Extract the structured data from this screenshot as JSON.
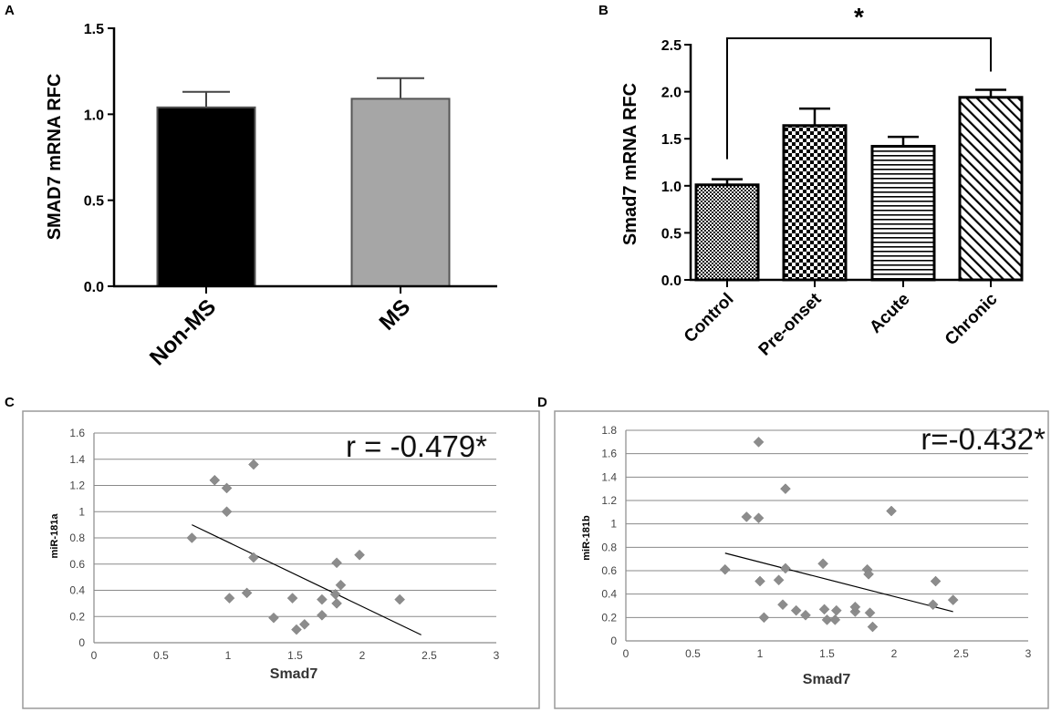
{
  "chart_data": [
    {
      "panel": "A",
      "type": "bar",
      "categories": [
        "Non-MS",
        "MS"
      ],
      "values": [
        1.04,
        1.09
      ],
      "errors": [
        0.09,
        0.12
      ],
      "colors": [
        "#000000",
        "#a6a6a6"
      ],
      "ylabel": "SMAD7 mRNA RFC",
      "ylim": [
        0,
        1.5
      ],
      "yticks": [
        "0.0",
        "0.5",
        "1.0",
        "1.5"
      ]
    },
    {
      "panel": "B",
      "type": "bar",
      "categories": [
        "Control",
        "Pre-onset",
        "Acute",
        "Chronic"
      ],
      "values": [
        1.01,
        1.64,
        1.42,
        1.94
      ],
      "errors": [
        0.06,
        0.18,
        0.1,
        0.08
      ],
      "patterns": [
        "fine-check",
        "checker",
        "horizontal-lines",
        "diagonal-lines"
      ],
      "ylabel": "Smad7 mRNA RFC",
      "ylim": [
        0,
        2.5
      ],
      "yticks": [
        "0.0",
        "0.5",
        "1.0",
        "1.5",
        "2.0",
        "2.5"
      ],
      "significance": {
        "from": "Control",
        "to": "Chronic",
        "label": "*"
      }
    },
    {
      "panel": "C",
      "type": "scatter",
      "xlabel": "Smad7",
      "ylabel": "miR-181a",
      "xlim": [
        0,
        3
      ],
      "ylim": [
        0,
        1.6
      ],
      "xticks": [
        "0",
        "0.5",
        "1",
        "1.5",
        "2",
        "2.5",
        "3"
      ],
      "yticks": [
        "0",
        "0.2",
        "0.4",
        "0.6",
        "0.8",
        "1",
        "1.2",
        "1.4",
        "1.6"
      ],
      "annotation": "r = -0.479*",
      "points": [
        {
          "x": 0.73,
          "y": 0.8
        },
        {
          "x": 0.9,
          "y": 1.24
        },
        {
          "x": 0.99,
          "y": 1.18
        },
        {
          "x": 0.99,
          "y": 1.0
        },
        {
          "x": 1.01,
          "y": 0.34
        },
        {
          "x": 1.14,
          "y": 0.38
        },
        {
          "x": 1.19,
          "y": 1.36
        },
        {
          "x": 1.19,
          "y": 0.65
        },
        {
          "x": 1.34,
          "y": 0.19
        },
        {
          "x": 1.48,
          "y": 0.34
        },
        {
          "x": 1.51,
          "y": 0.1
        },
        {
          "x": 1.57,
          "y": 0.14
        },
        {
          "x": 1.7,
          "y": 0.33
        },
        {
          "x": 1.7,
          "y": 0.21
        },
        {
          "x": 1.8,
          "y": 0.37
        },
        {
          "x": 1.81,
          "y": 0.3
        },
        {
          "x": 1.81,
          "y": 0.61
        },
        {
          "x": 1.84,
          "y": 0.44
        },
        {
          "x": 1.98,
          "y": 0.67
        },
        {
          "x": 2.28,
          "y": 0.33
        }
      ],
      "trendline": [
        {
          "x": 0.73,
          "y": 0.9
        },
        {
          "x": 2.44,
          "y": 0.06
        }
      ]
    },
    {
      "panel": "D",
      "type": "scatter",
      "xlabel": "Smad7",
      "ylabel": "miR-181b",
      "xlim": [
        0,
        3
      ],
      "ylim": [
        0,
        1.8
      ],
      "xticks": [
        "0",
        "0.5",
        "1",
        "1.5",
        "2",
        "2.5",
        "3"
      ],
      "yticks": [
        "0",
        "0.2",
        "0.4",
        "0.6",
        "0.8",
        "1",
        "1.2",
        "1.4",
        "1.6",
        "1.8"
      ],
      "annotation": "r=-0.432*",
      "points": [
        {
          "x": 0.74,
          "y": 0.61
        },
        {
          "x": 0.9,
          "y": 1.06
        },
        {
          "x": 0.99,
          "y": 1.7
        },
        {
          "x": 0.99,
          "y": 1.05
        },
        {
          "x": 1.0,
          "y": 0.51
        },
        {
          "x": 1.03,
          "y": 0.2
        },
        {
          "x": 1.14,
          "y": 0.52
        },
        {
          "x": 1.17,
          "y": 0.31
        },
        {
          "x": 1.19,
          "y": 1.3
        },
        {
          "x": 1.19,
          "y": 0.62
        },
        {
          "x": 1.27,
          "y": 0.26
        },
        {
          "x": 1.34,
          "y": 0.22
        },
        {
          "x": 1.47,
          "y": 0.66
        },
        {
          "x": 1.48,
          "y": 0.27
        },
        {
          "x": 1.5,
          "y": 0.18
        },
        {
          "x": 1.56,
          "y": 0.18
        },
        {
          "x": 1.57,
          "y": 0.26
        },
        {
          "x": 1.71,
          "y": 0.25
        },
        {
          "x": 1.71,
          "y": 0.29
        },
        {
          "x": 1.8,
          "y": 0.61
        },
        {
          "x": 1.81,
          "y": 0.57
        },
        {
          "x": 1.82,
          "y": 0.24
        },
        {
          "x": 1.84,
          "y": 0.12
        },
        {
          "x": 1.98,
          "y": 1.11
        },
        {
          "x": 2.29,
          "y": 0.31
        },
        {
          "x": 2.31,
          "y": 0.51
        },
        {
          "x": 2.44,
          "y": 0.35
        }
      ],
      "trendline": [
        {
          "x": 0.74,
          "y": 0.75
        },
        {
          "x": 2.44,
          "y": 0.25
        }
      ]
    }
  ]
}
